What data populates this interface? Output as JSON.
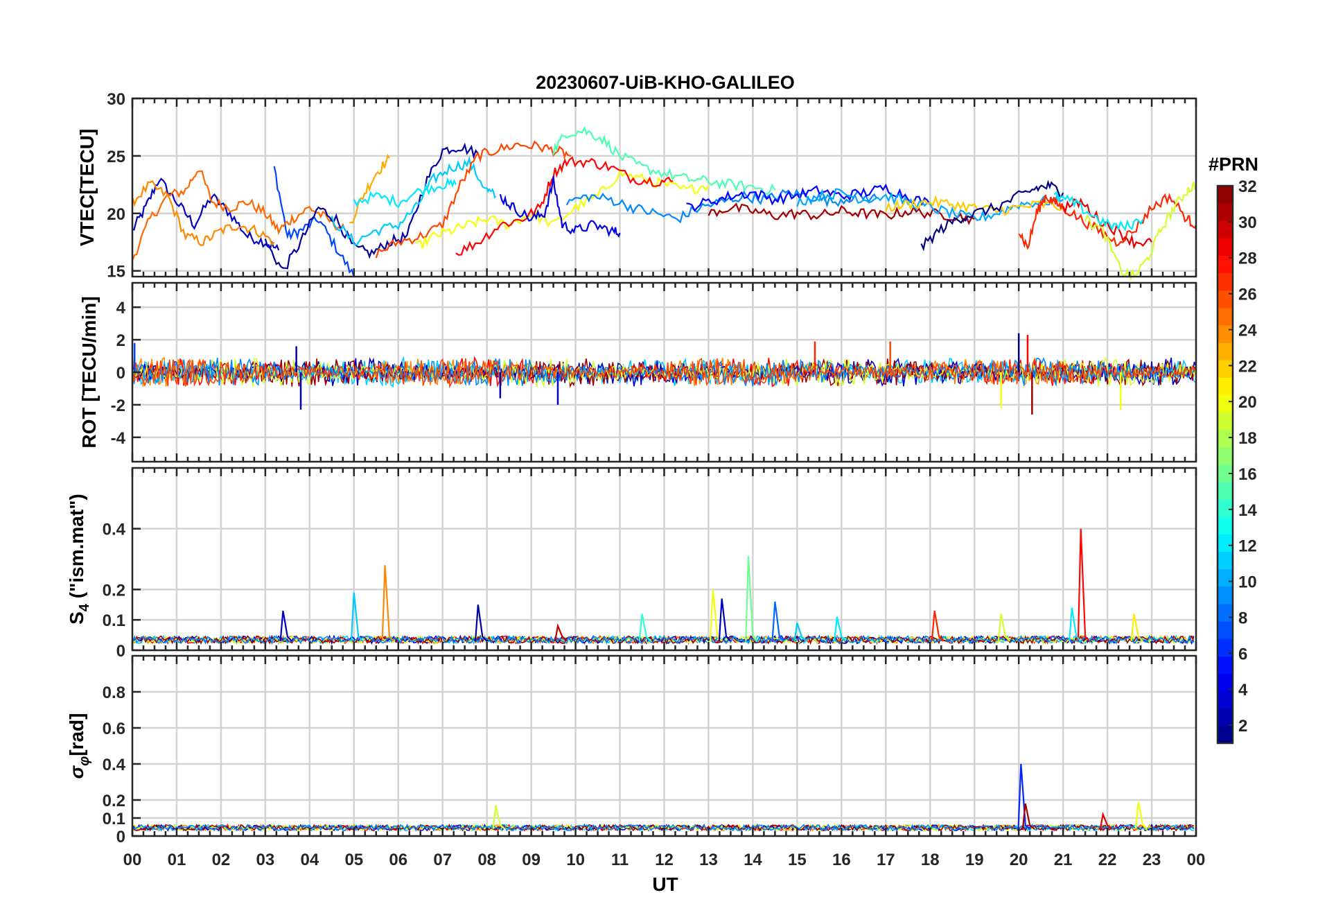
{
  "chart_data": {
    "title": "20230607-UiB-KHO-GALILEO",
    "type": "line",
    "x_axis": {
      "label": "UT",
      "ticks": [
        "00",
        "01",
        "02",
        "03",
        "04",
        "05",
        "06",
        "07",
        "08",
        "09",
        "10",
        "11",
        "12",
        "13",
        "14",
        "15",
        "16",
        "17",
        "18",
        "19",
        "20",
        "21",
        "22",
        "23",
        "00"
      ],
      "range_hours": [
        0,
        24
      ]
    },
    "colorbar": {
      "label": "#PRN",
      "range": [
        1,
        32
      ],
      "ticks": [
        "2",
        "4",
        "6",
        "8",
        "10",
        "12",
        "14",
        "16",
        "18",
        "20",
        "22",
        "24",
        "26",
        "28",
        "30",
        "32"
      ],
      "colormap": "jet"
    },
    "panels": [
      {
        "id": "vtec",
        "ylabel": "VTEC[TECU]",
        "ylim": [
          14.5,
          30
        ],
        "yticks": [
          "15",
          "20",
          "25",
          "30"
        ],
        "grid": true,
        "series": [
          {
            "prn": 3,
            "x": [
              0.0,
              0.3,
              0.6,
              1.0,
              1.4,
              1.8,
              2.2,
              2.6,
              3.0,
              3.3
            ],
            "y": [
              18.5,
              20.5,
              23.0,
              21.0,
              19.0,
              21.5,
              20.0,
              18.0,
              17.5,
              16.8
            ]
          },
          {
            "prn": 7,
            "x": [
              3.2,
              3.5,
              3.8,
              4.2,
              4.6,
              5.0
            ],
            "y": [
              24.0,
              18.0,
              18.5,
              19.5,
              17.0,
              14.5
            ]
          },
          {
            "prn": 25,
            "x": [
              0.0,
              0.4,
              0.8,
              1.2,
              1.5,
              1.8,
              2.2,
              2.6,
              3.0,
              3.3,
              3.6,
              4.0,
              4.4,
              4.8
            ],
            "y": [
              16.0,
              19.5,
              21.5,
              22.0,
              24.0,
              21.0,
              20.5,
              21.0,
              20.0,
              18.5,
              19.5,
              20.5,
              19.5,
              18.5
            ]
          },
          {
            "prn": 24,
            "x": [
              0.0,
              0.4,
              0.8,
              1.2,
              1.6,
              2.0,
              2.4,
              2.8,
              3.2
            ],
            "y": [
              21.0,
              22.5,
              21.5,
              18.0,
              17.5,
              18.5,
              19.0,
              18.5,
              17.5
            ]
          },
          {
            "prn": 2,
            "x": [
              3.0,
              3.4,
              3.8,
              4.2,
              4.6,
              5.0,
              5.4,
              5.8,
              6.2,
              6.6,
              7.0,
              7.4,
              7.8
            ],
            "y": [
              17.5,
              15.0,
              17.5,
              20.5,
              19.5,
              17.0,
              16.5,
              17.5,
              18.0,
              22.5,
              25.5,
              25.8,
              25.2
            ]
          },
          {
            "prn": 23,
            "x": [
              4.9,
              5.2,
              5.5,
              5.8
            ],
            "y": [
              19.0,
              21.5,
              23.5,
              24.8
            ]
          },
          {
            "prn": 11,
            "x": [
              4.5,
              5.0,
              5.5,
              6.0,
              6.4,
              6.8,
              7.2,
              7.6,
              8.0,
              8.2
            ],
            "y": [
              19.5,
              17.5,
              18.5,
              19.0,
              20.5,
              23.0,
              24.0,
              24.4,
              22.0,
              21.5
            ]
          },
          {
            "prn": 12,
            "x": [
              5.0,
              5.5,
              6.0,
              6.5,
              7.0,
              7.3
            ],
            "y": [
              21.0,
              21.5,
              21.0,
              22.0,
              22.5,
              22.5
            ]
          },
          {
            "prn": 26,
            "x": [
              5.5,
              6.0,
              6.5,
              7.0,
              7.4,
              7.8,
              8.2,
              8.7,
              9.2,
              9.6,
              9.9
            ],
            "y": [
              16.5,
              17.5,
              18.0,
              19.0,
              22.5,
              25.0,
              25.5,
              26.0,
              25.8,
              25.4,
              25.0
            ]
          },
          {
            "prn": 20,
            "x": [
              6.4,
              6.8,
              7.2,
              7.6,
              8.0,
              8.5,
              9.0,
              9.5,
              10.0,
              10.5,
              11.0,
              11.5,
              12.0,
              12.5,
              13.0
            ],
            "y": [
              17.0,
              18.0,
              18.5,
              19.0,
              19.5,
              19.0,
              20.0,
              19.0,
              20.5,
              21.5,
              23.5,
              23.0,
              22.5,
              22.0,
              22.5
            ]
          },
          {
            "prn": 28,
            "x": [
              7.3,
              7.8,
              8.3,
              8.8,
              9.2,
              9.5,
              9.8,
              10.3,
              10.8,
              11.3,
              11.8,
              12.2
            ],
            "y": [
              16.5,
              17.5,
              19.0,
              19.5,
              20.5,
              23.5,
              24.5,
              24.5,
              24.0,
              23.0,
              22.8,
              22.8
            ]
          },
          {
            "prn": 4,
            "x": [
              8.3,
              8.6,
              9.0,
              9.3,
              9.5,
              9.7,
              10.0,
              10.4,
              10.8,
              11.0
            ],
            "y": [
              21.5,
              20.5,
              19.5,
              20.0,
              22.8,
              19.0,
              18.5,
              19.0,
              18.5,
              18.3
            ]
          },
          {
            "prn": 15,
            "x": [
              9.5,
              9.8,
              10.2,
              10.6,
              11.0,
              11.5,
              12.0,
              12.5,
              13.0,
              13.5,
              14.0,
              14.5
            ],
            "y": [
              25.5,
              27.0,
              27.2,
              26.5,
              25.0,
              24.0,
              23.5,
              23.0,
              22.8,
              22.5,
              22.3,
              22.0
            ]
          },
          {
            "prn": 9,
            "x": [
              9.8,
              10.3,
              10.8,
              11.3,
              11.8,
              12.3,
              12.8,
              13.3,
              13.8,
              14.3,
              14.8,
              15.3,
              15.8,
              16.3,
              16.8
            ],
            "y": [
              21.0,
              21.5,
              21.2,
              20.5,
              20.0,
              19.5,
              20.5,
              21.0,
              21.5,
              21.2,
              21.8,
              21.5,
              21.0,
              21.5,
              21.3
            ]
          },
          {
            "prn": 31,
            "x": [
              13.0,
              13.5,
              14.0,
              14.5,
              15.0,
              15.5,
              16.0,
              16.5,
              17.0,
              17.5,
              18.0,
              18.5,
              19.0
            ],
            "y": [
              20.0,
              20.5,
              20.2,
              19.8,
              20.0,
              19.8,
              20.2,
              20.0,
              19.8,
              20.2,
              20.0,
              19.8,
              19.5
            ]
          },
          {
            "prn": 5,
            "x": [
              12.5,
              13.0,
              13.5,
              14.0,
              14.5,
              15.0,
              15.5,
              16.0,
              16.5,
              17.0,
              17.5,
              18.0
            ],
            "y": [
              20.5,
              21.0,
              21.5,
              21.8,
              21.2,
              21.6,
              22.0,
              21.5,
              21.8,
              22.2,
              21.5,
              20.8
            ]
          },
          {
            "prn": 10,
            "x": [
              15.0,
              15.5,
              16.0,
              16.5,
              17.0,
              17.5,
              18.0,
              18.5,
              19.0,
              19.5,
              20.0,
              20.5,
              21.0
            ],
            "y": [
              21.0,
              21.5,
              21.8,
              21.2,
              21.5,
              21.0,
              20.5,
              20.0,
              19.5,
              20.0,
              20.8,
              21.0,
              21.2
            ]
          },
          {
            "prn": 22,
            "x": [
              17.0,
              17.5,
              18.0,
              18.5,
              19.0,
              19.5,
              20.0,
              20.5,
              21.0
            ],
            "y": [
              20.5,
              20.8,
              21.0,
              20.8,
              20.5,
              20.2,
              20.5,
              20.8,
              20.5
            ]
          },
          {
            "prn": 1,
            "x": [
              17.8,
              18.2,
              18.6,
              19.0,
              19.5,
              20.0,
              20.4,
              20.7,
              21.0
            ],
            "y": [
              17.0,
              18.5,
              19.5,
              20.0,
              20.5,
              21.5,
              22.2,
              22.4,
              21.8
            ]
          },
          {
            "prn": 27,
            "x": [
              20.0,
              20.2,
              20.4,
              20.6,
              20.8,
              21.0,
              21.4,
              21.8,
              22.2,
              22.6,
              23.0,
              23.4,
              23.8,
              24.0
            ],
            "y": [
              18.5,
              17.0,
              20.0,
              21.5,
              21.0,
              20.5,
              19.5,
              18.5,
              17.5,
              18.5,
              20.5,
              21.5,
              19.5,
              19.0
            ]
          },
          {
            "prn": 19,
            "x": [
              21.5,
              21.9,
              22.3,
              22.6,
              22.9,
              23.2,
              23.5,
              23.8,
              24.0
            ],
            "y": [
              19.5,
              18.5,
              15.0,
              14.5,
              16.0,
              18.5,
              20.5,
              22.0,
              22.5
            ]
          },
          {
            "prn": 29,
            "x": [
              21.0,
              21.4,
              21.8,
              22.2,
              22.6,
              23.0
            ],
            "y": [
              20.5,
              21.0,
              19.5,
              18.5,
              17.5,
              17.5
            ]
          },
          {
            "prn": 12,
            "x": [
              20.8,
              21.2,
              21.6,
              22.0,
              22.4,
              22.8
            ],
            "y": [
              21.5,
              21.0,
              20.0,
              19.0,
              18.8,
              19.5
            ]
          }
        ]
      },
      {
        "id": "rot",
        "ylabel": "ROT [TECU/min]",
        "ylim": [
          -5.5,
          5.5
        ],
        "yticks": [
          "4",
          "2",
          "0",
          "-2",
          "-4"
        ],
        "grid": true,
        "spikes": [
          {
            "prn": 7,
            "x": 0.05,
            "y": 1.8
          },
          {
            "prn": 3,
            "x": 3.7,
            "y": 1.6
          },
          {
            "prn": 3,
            "x": 3.8,
            "y": -2.3
          },
          {
            "prn": 3,
            "x": 8.3,
            "y": -1.6
          },
          {
            "prn": 3,
            "x": 9.6,
            "y": -2.0
          },
          {
            "prn": 27,
            "x": 15.4,
            "y": 1.9
          },
          {
            "prn": 26,
            "x": 17.1,
            "y": 1.9
          },
          {
            "prn": 20,
            "x": 19.6,
            "y": -2.2
          },
          {
            "prn": 1,
            "x": 20.0,
            "y": 2.4
          },
          {
            "prn": 31,
            "x": 20.3,
            "y": -2.6
          },
          {
            "prn": 28,
            "x": 20.2,
            "y": 2.3
          },
          {
            "prn": 20,
            "x": 22.3,
            "y": -2.3
          }
        ]
      },
      {
        "id": "s4",
        "ylabel": "S4 (\"ism.mat\")",
        "ylabel_main": "S",
        "ylabel_sub": "4",
        "ylabel_rest": " (\"ism.mat\")",
        "ylim": [
          0,
          0.6
        ],
        "yticks": [
          "0",
          "0.1",
          "0.2",
          "0.4"
        ],
        "grid": true,
        "baseline": 0.03,
        "spikes": [
          {
            "prn": 3,
            "x": 3.4,
            "y": 0.13
          },
          {
            "prn": 11,
            "x": 5.0,
            "y": 0.19
          },
          {
            "prn": 24,
            "x": 5.7,
            "y": 0.28
          },
          {
            "prn": 2,
            "x": 7.8,
            "y": 0.15
          },
          {
            "prn": 30,
            "x": 9.6,
            "y": 0.08
          },
          {
            "prn": 14,
            "x": 11.5,
            "y": 0.12
          },
          {
            "prn": 20,
            "x": 13.1,
            "y": 0.2
          },
          {
            "prn": 3,
            "x": 13.3,
            "y": 0.17
          },
          {
            "prn": 16,
            "x": 13.9,
            "y": 0.31
          },
          {
            "prn": 8,
            "x": 14.5,
            "y": 0.16
          },
          {
            "prn": 11,
            "x": 15.0,
            "y": 0.09
          },
          {
            "prn": 12,
            "x": 15.9,
            "y": 0.11
          },
          {
            "prn": 27,
            "x": 18.1,
            "y": 0.13
          },
          {
            "prn": 19,
            "x": 19.6,
            "y": 0.12
          },
          {
            "prn": 28,
            "x": 21.4,
            "y": 0.4
          },
          {
            "prn": 12,
            "x": 21.2,
            "y": 0.14
          },
          {
            "prn": 21,
            "x": 22.6,
            "y": 0.12
          }
        ]
      },
      {
        "id": "sigma_phi",
        "ylabel": "σφ[rad]",
        "ylabel_main": "σ",
        "ylabel_sub": "φ",
        "ylabel_rest": "[rad]",
        "ylim": [
          0,
          1.0
        ],
        "yticks": [
          "0",
          "0.1",
          "0.2",
          "0.4",
          "0.6",
          "0.8"
        ],
        "grid": true,
        "baseline": 0.04,
        "spikes": [
          {
            "prn": 6,
            "x": 20.05,
            "y": 0.4
          },
          {
            "prn": 31,
            "x": 20.15,
            "y": 0.18
          },
          {
            "prn": 19,
            "x": 8.2,
            "y": 0.17
          },
          {
            "prn": 20,
            "x": 22.7,
            "y": 0.19
          },
          {
            "prn": 29,
            "x": 21.9,
            "y": 0.12
          }
        ]
      }
    ]
  }
}
